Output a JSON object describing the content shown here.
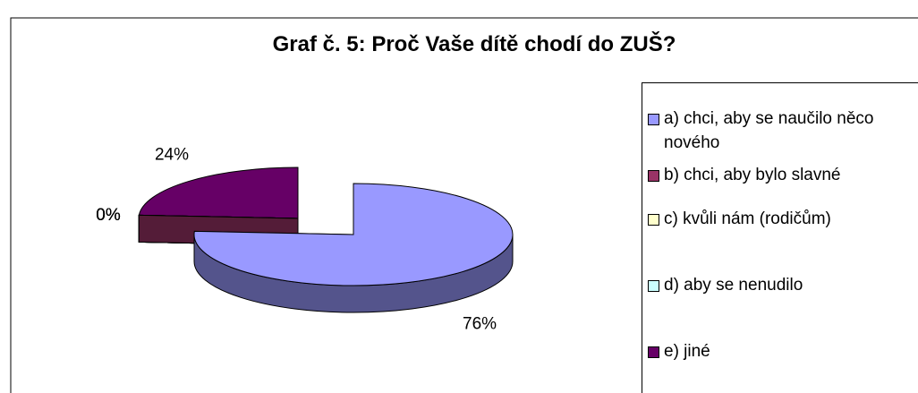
{
  "chart_data": {
    "type": "pie",
    "title": "Graf č. 5: Proč Vaše dítě chodí do ZUŠ?",
    "categories": [
      "a) chci, aby se naučilo něco nového",
      "b) chci, aby bylo slavné",
      "c) kvůli nám (rodičům)",
      "d) aby se nenudilo",
      "e) jiné"
    ],
    "values": [
      76,
      0,
      0,
      0,
      24
    ],
    "value_labels": [
      "76%",
      "0%",
      "0%",
      "0%",
      "24%"
    ],
    "colors": [
      "#9999ff",
      "#993366",
      "#ffffcc",
      "#ccffff",
      "#660066"
    ],
    "legend": "right"
  }
}
